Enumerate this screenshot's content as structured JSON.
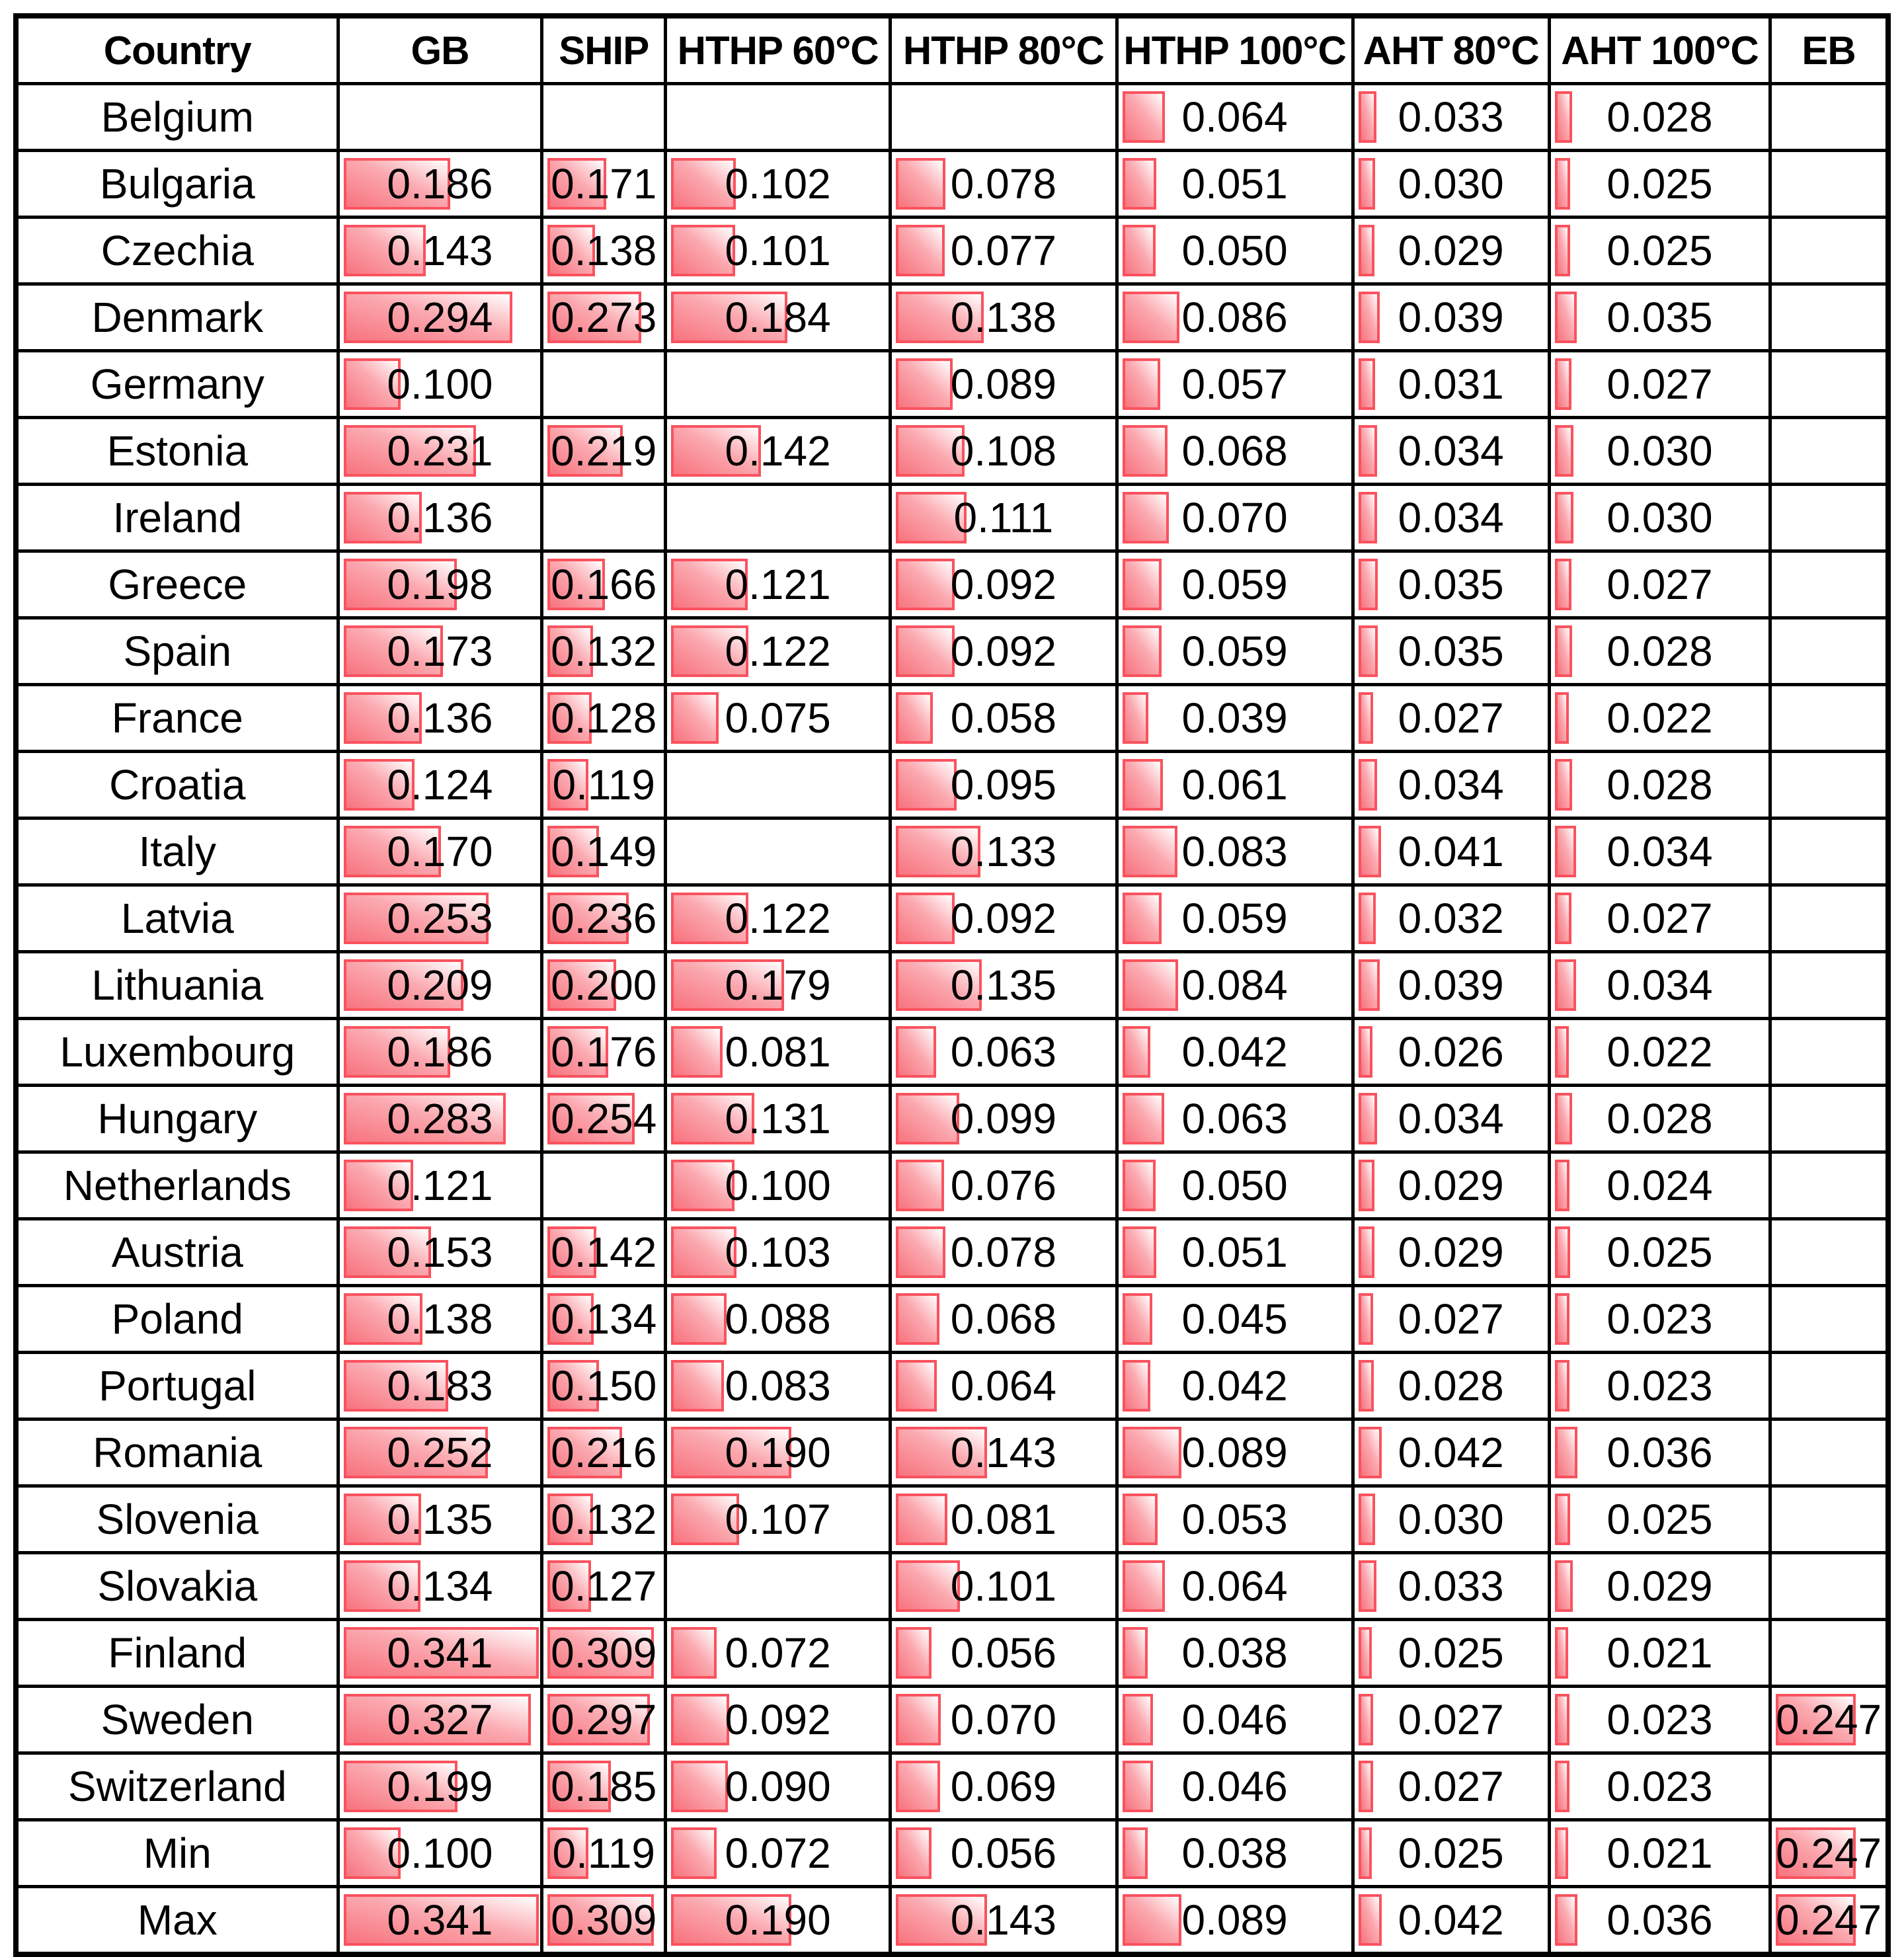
{
  "chart_data": {
    "type": "table",
    "title": "",
    "columns": [
      "Country",
      "GB",
      "SHIP",
      "HTHP 60°C",
      "HTHP 80°C",
      "HTHP 100°C",
      "AHT 80°C",
      "AHT 100°C",
      "EB"
    ],
    "value_decimals": 3,
    "bar_scale_min": 0,
    "bar_scale_max": 0.35,
    "bar_border_color": "#fa525e",
    "bar_fill_start_color": "#f7737e",
    "bar_fill_mid_color": "#fba9b0",
    "bar_fill_end_color": "#ffffff",
    "grid_color": "#000000",
    "rows": [
      {
        "country": "Belgium",
        "values": [
          null,
          null,
          null,
          null,
          0.064,
          0.033,
          0.028,
          null
        ]
      },
      {
        "country": "Bulgaria",
        "values": [
          0.186,
          0.171,
          0.102,
          0.078,
          0.051,
          0.03,
          0.025,
          null
        ]
      },
      {
        "country": "Czechia",
        "values": [
          0.143,
          0.138,
          0.101,
          0.077,
          0.05,
          0.029,
          0.025,
          null
        ]
      },
      {
        "country": "Denmark",
        "values": [
          0.294,
          0.273,
          0.184,
          0.138,
          0.086,
          0.039,
          0.035,
          null
        ]
      },
      {
        "country": "Germany",
        "values": [
          0.1,
          null,
          null,
          0.089,
          0.057,
          0.031,
          0.027,
          null
        ]
      },
      {
        "country": "Estonia",
        "values": [
          0.231,
          0.219,
          0.142,
          0.108,
          0.068,
          0.034,
          0.03,
          null
        ]
      },
      {
        "country": "Ireland",
        "values": [
          0.136,
          null,
          null,
          0.111,
          0.07,
          0.034,
          0.03,
          null
        ]
      },
      {
        "country": "Greece",
        "values": [
          0.198,
          0.166,
          0.121,
          0.092,
          0.059,
          0.035,
          0.027,
          null
        ]
      },
      {
        "country": "Spain",
        "values": [
          0.173,
          0.132,
          0.122,
          0.092,
          0.059,
          0.035,
          0.028,
          null
        ]
      },
      {
        "country": "France",
        "values": [
          0.136,
          0.128,
          0.075,
          0.058,
          0.039,
          0.027,
          0.022,
          null
        ]
      },
      {
        "country": "Croatia",
        "values": [
          0.124,
          0.119,
          null,
          0.095,
          0.061,
          0.034,
          0.028,
          null
        ]
      },
      {
        "country": "Italy",
        "values": [
          0.17,
          0.149,
          null,
          0.133,
          0.083,
          0.041,
          0.034,
          null
        ]
      },
      {
        "country": "Latvia",
        "values": [
          0.253,
          0.236,
          0.122,
          0.092,
          0.059,
          0.032,
          0.027,
          null
        ]
      },
      {
        "country": "Lithuania",
        "values": [
          0.209,
          0.2,
          0.179,
          0.135,
          0.084,
          0.039,
          0.034,
          null
        ]
      },
      {
        "country": "Luxembourg",
        "values": [
          0.186,
          0.176,
          0.081,
          0.063,
          0.042,
          0.026,
          0.022,
          null
        ]
      },
      {
        "country": "Hungary",
        "values": [
          0.283,
          0.254,
          0.131,
          0.099,
          0.063,
          0.034,
          0.028,
          null
        ]
      },
      {
        "country": "Netherlands",
        "values": [
          0.121,
          null,
          0.1,
          0.076,
          0.05,
          0.029,
          0.024,
          null
        ]
      },
      {
        "country": "Austria",
        "values": [
          0.153,
          0.142,
          0.103,
          0.078,
          0.051,
          0.029,
          0.025,
          null
        ]
      },
      {
        "country": "Poland",
        "values": [
          0.138,
          0.134,
          0.088,
          0.068,
          0.045,
          0.027,
          0.023,
          null
        ]
      },
      {
        "country": "Portugal",
        "values": [
          0.183,
          0.15,
          0.083,
          0.064,
          0.042,
          0.028,
          0.023,
          null
        ]
      },
      {
        "country": "Romania",
        "values": [
          0.252,
          0.216,
          0.19,
          0.143,
          0.089,
          0.042,
          0.036,
          null
        ]
      },
      {
        "country": "Slovenia",
        "values": [
          0.135,
          0.132,
          0.107,
          0.081,
          0.053,
          0.03,
          0.025,
          null
        ]
      },
      {
        "country": "Slovakia",
        "values": [
          0.134,
          0.127,
          null,
          0.101,
          0.064,
          0.033,
          0.029,
          null
        ]
      },
      {
        "country": "Finland",
        "values": [
          0.341,
          0.309,
          0.072,
          0.056,
          0.038,
          0.025,
          0.021,
          null
        ]
      },
      {
        "country": "Sweden",
        "values": [
          0.327,
          0.297,
          0.092,
          0.07,
          0.046,
          0.027,
          0.023,
          0.247
        ]
      },
      {
        "country": "Switzerland",
        "values": [
          0.199,
          0.185,
          0.09,
          0.069,
          0.046,
          0.027,
          0.023,
          null
        ]
      },
      {
        "country": "Min",
        "values": [
          0.1,
          0.119,
          0.072,
          0.056,
          0.038,
          0.025,
          0.021,
          0.247
        ]
      },
      {
        "country": "Max",
        "values": [
          0.341,
          0.309,
          0.19,
          0.143,
          0.089,
          0.042,
          0.036,
          0.247
        ]
      }
    ]
  }
}
